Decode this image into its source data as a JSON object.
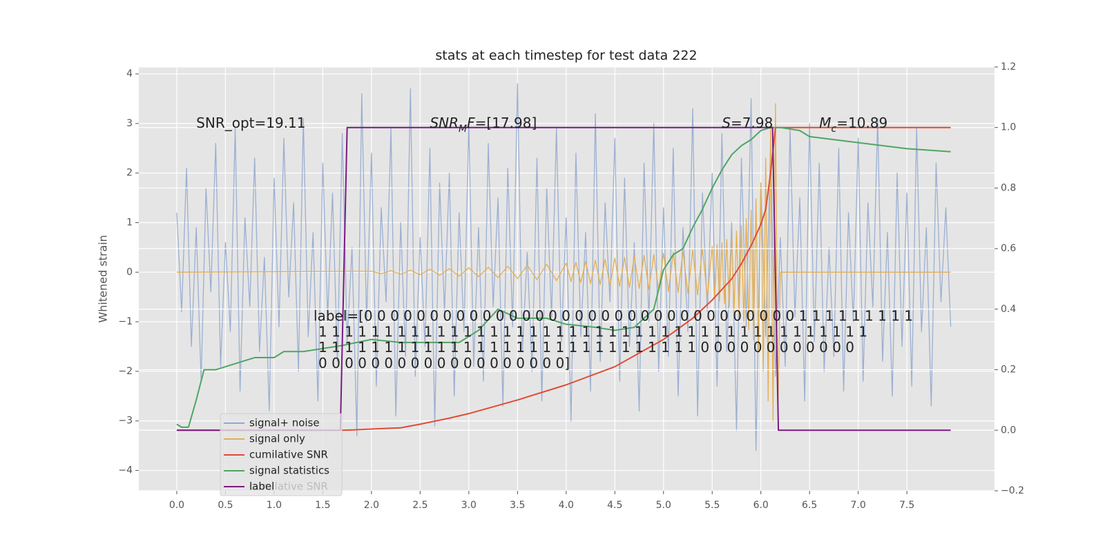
{
  "chart_data": {
    "type": "line",
    "title": "stats at each timestep for test data 222",
    "y_label": "Whitened strain",
    "xlim": [
      -0.39,
      8.4
    ],
    "ylim": [
      -4.41,
      4.14
    ],
    "y2lim": [
      -0.2,
      1.2
    ],
    "xticks": [
      {
        "value": 0,
        "label": "0.0"
      },
      {
        "value": 0.5,
        "label": "0.5"
      },
      {
        "value": 1,
        "label": "1.0"
      },
      {
        "value": 1.5,
        "label": "1.5"
      },
      {
        "value": 2,
        "label": "2.0"
      },
      {
        "value": 2.5,
        "label": "2.5"
      },
      {
        "value": 3,
        "label": "3.0"
      },
      {
        "value": 3.5,
        "label": "3.5"
      },
      {
        "value": 4,
        "label": "4.0"
      },
      {
        "value": 4.5,
        "label": "4.5"
      },
      {
        "value": 5,
        "label": "5.0"
      },
      {
        "value": 5.5,
        "label": "5.5"
      },
      {
        "value": 6,
        "label": "6.0"
      },
      {
        "value": 6.5,
        "label": "6.5"
      },
      {
        "value": 7,
        "label": "7.0"
      },
      {
        "value": 7.5,
        "label": "7.5"
      }
    ],
    "yticks": [
      {
        "value": -4,
        "label": "−4"
      },
      {
        "value": -3,
        "label": "−3"
      },
      {
        "value": -2,
        "label": "−2"
      },
      {
        "value": -1,
        "label": "−1"
      },
      0,
      1,
      2,
      3,
      4
    ],
    "y2ticks": [
      {
        "value": -0.2,
        "label": "−0.2"
      },
      {
        "value": 0,
        "label": "0.0"
      },
      {
        "value": 0.2,
        "label": "0.2"
      },
      {
        "value": 0.4,
        "label": "0.4"
      },
      {
        "value": 0.6,
        "label": "0.6"
      },
      {
        "value": 0.8,
        "label": "0.8"
      },
      {
        "value": 1,
        "label": "1.0"
      },
      {
        "value": 1.2,
        "label": "1.2"
      }
    ],
    "grid": true,
    "series": [
      {
        "name": "signal+ noise",
        "color": "#92a8cf",
        "axis": "y",
        "x": [
          0,
          0.05,
          0.1,
          0.15,
          0.2,
          0.25,
          0.3,
          0.35,
          0.4,
          0.45,
          0.5,
          0.55,
          0.6,
          0.65,
          0.7,
          0.75,
          0.8,
          0.85,
          0.9,
          0.95,
          1,
          1.05,
          1.1,
          1.15,
          1.2,
          1.25,
          1.3,
          1.35,
          1.4,
          1.45,
          1.5,
          1.55,
          1.6,
          1.65,
          1.7,
          1.75,
          1.8,
          1.85,
          1.9,
          1.95,
          2,
          2.05,
          2.1,
          2.15,
          2.2,
          2.25,
          2.3,
          2.35,
          2.4,
          2.45,
          2.5,
          2.55,
          2.6,
          2.65,
          2.7,
          2.75,
          2.8,
          2.85,
          2.9,
          2.95,
          3,
          3.05,
          3.1,
          3.15,
          3.2,
          3.25,
          3.3,
          3.35,
          3.4,
          3.45,
          3.5,
          3.55,
          3.6,
          3.65,
          3.7,
          3.75,
          3.8,
          3.85,
          3.9,
          3.95,
          4,
          4.05,
          4.1,
          4.15,
          4.2,
          4.25,
          4.3,
          4.35,
          4.4,
          4.45,
          4.5,
          4.55,
          4.6,
          4.65,
          4.7,
          4.75,
          4.8,
          4.85,
          4.9,
          4.95,
          5,
          5.05,
          5.1,
          5.15,
          5.2,
          5.25,
          5.3,
          5.35,
          5.4,
          5.45,
          5.5,
          5.55,
          5.6,
          5.65,
          5.7,
          5.75,
          5.8,
          5.85,
          5.9,
          5.95,
          6,
          6.05,
          6.1,
          6.15,
          6.2,
          6.25,
          6.3,
          6.35,
          6.4,
          6.45,
          6.5,
          6.55,
          6.6,
          6.65,
          6.7,
          6.75,
          6.8,
          6.85,
          6.9,
          6.95,
          7,
          7.05,
          7.1,
          7.15,
          7.2,
          7.25,
          7.3,
          7.35,
          7.4,
          7.45,
          7.5,
          7.55,
          7.6,
          7.65,
          7.7,
          7.75,
          7.8,
          7.85,
          7.9,
          7.95
        ],
        "values": [
          1.2,
          -0.8,
          2.1,
          -1.5,
          0.9,
          -2.2,
          1.7,
          -0.4,
          2.6,
          -1.9,
          0.6,
          -1.2,
          2.9,
          -2.4,
          1.1,
          -0.7,
          2.3,
          -1.6,
          0.3,
          -2.8,
          1.9,
          -1.1,
          2.7,
          -0.5,
          1.4,
          -2.0,
          3.1,
          -1.3,
          0.8,
          -2.6,
          2.2,
          -0.9,
          1.6,
          -1.8,
          2.8,
          -1.4,
          0.5,
          -3.3,
          3.6,
          -1.0,
          2.4,
          -2.3,
          1.3,
          -0.6,
          2.9,
          -2.9,
          1.0,
          -1.7,
          3.7,
          -2.1,
          0.7,
          -1.5,
          2.5,
          -3.1,
          1.8,
          -0.8,
          2.0,
          -2.5,
          1.2,
          -1.2,
          3.0,
          -1.9,
          0.9,
          -2.2,
          2.6,
          -0.7,
          1.5,
          -2.7,
          2.1,
          -1.1,
          3.8,
          -1.6,
          0.4,
          -2.0,
          2.3,
          -2.6,
          1.7,
          -0.9,
          2.9,
          -1.4,
          1.1,
          -3.0,
          2.4,
          -1.3,
          0.8,
          -2.4,
          3.2,
          -1.8,
          1.4,
          -0.6,
          2.7,
          -2.2,
          1.9,
          -1.5,
          0.6,
          -2.8,
          2.2,
          -1.0,
          3.0,
          -2.0,
          1.3,
          -1.7,
          2.5,
          -2.5,
          0.9,
          -1.2,
          3.3,
          -2.9,
          1.6,
          -0.8,
          2.0,
          -2.3,
          2.8,
          -1.6,
          1.0,
          -3.2,
          2.3,
          -1.1,
          3.5,
          -3.6,
          1.8,
          -1.3,
          2.6,
          -2.1,
          0.7,
          -1.9,
          2.9,
          -0.9,
          1.5,
          -2.6,
          3.0,
          -1.4,
          2.2,
          -2.0,
          0.5,
          -1.7,
          2.5,
          -2.4,
          1.2,
          -1.0,
          2.7,
          -2.2,
          1.4,
          -0.7,
          3.1,
          -1.8,
          0.8,
          -2.5,
          2.0,
          -1.5,
          1.6,
          -2.3,
          2.9,
          -1.2,
          0.9,
          -2.7,
          2.2,
          -0.6,
          1.3,
          -1.1
        ]
      },
      {
        "name": "signal only",
        "color": "#e5ae4f",
        "axis": "y",
        "x": [
          0,
          2,
          2.1,
          2.2,
          2.3,
          2.4,
          2.5,
          2.6,
          2.7,
          2.8,
          2.9,
          3,
          3.1,
          3.2,
          3.3,
          3.4,
          3.5,
          3.6,
          3.7,
          3.8,
          3.9,
          4,
          4.05,
          4.1,
          4.15,
          4.2,
          4.25,
          4.3,
          4.35,
          4.4,
          4.45,
          4.5,
          4.55,
          4.6,
          4.65,
          4.7,
          4.75,
          4.8,
          4.85,
          4.9,
          4.95,
          5,
          5.05,
          5.1,
          5.15,
          5.2,
          5.25,
          5.3,
          5.35,
          5.4,
          5.45,
          5.5,
          5.525,
          5.55,
          5.575,
          5.6,
          5.625,
          5.65,
          5.675,
          5.7,
          5.725,
          5.75,
          5.775,
          5.8,
          5.825,
          5.85,
          5.875,
          5.9,
          5.925,
          5.95,
          5.975,
          6,
          6.025,
          6.05,
          6.075,
          6.1,
          6.125,
          6.15,
          6.175,
          6.2,
          7.95
        ],
        "values": [
          0,
          0.02,
          -0.03,
          0.03,
          -0.04,
          0.04,
          -0.05,
          0.06,
          -0.06,
          0.07,
          -0.08,
          0.09,
          -0.09,
          0.1,
          -0.11,
          0.12,
          -0.13,
          0.14,
          -0.15,
          0.16,
          -0.17,
          0.18,
          -0.19,
          0.2,
          -0.21,
          0.22,
          -0.23,
          0.24,
          -0.25,
          0.26,
          -0.27,
          0.28,
          -0.29,
          0.3,
          -0.31,
          0.32,
          -0.33,
          0.34,
          -0.35,
          0.36,
          -0.37,
          0.38,
          -0.39,
          0.4,
          -0.41,
          0.42,
          -0.43,
          0.45,
          -0.46,
          0.48,
          -0.5,
          0.52,
          -0.54,
          0.56,
          -0.58,
          0.6,
          -0.63,
          0.66,
          -0.7,
          0.74,
          -0.78,
          0.83,
          -0.88,
          0.94,
          -1.0,
          1.08,
          -1.16,
          1.25,
          -1.36,
          1.48,
          -1.62,
          1.8,
          -2.0,
          2.3,
          -2.6,
          2.9,
          -3.0,
          3.4,
          -2.9,
          0.0,
          0
        ]
      },
      {
        "name": "cumilative SNR",
        "color": "#e24a33",
        "axis": "y2",
        "x": [
          0,
          1.7,
          1.8,
          2,
          2.3,
          2.5,
          2.8,
          3,
          3.5,
          4,
          4.5,
          5,
          5.3,
          5.5,
          5.7,
          5.8,
          5.9,
          6,
          6.05,
          6.1,
          6.15,
          7.95
        ],
        "values": [
          0,
          0,
          0.001,
          0.004,
          0.008,
          0.02,
          0.04,
          0.055,
          0.1,
          0.15,
          0.21,
          0.3,
          0.37,
          0.43,
          0.5,
          0.55,
          0.61,
          0.68,
          0.73,
          0.85,
          1.0,
          1.0
        ]
      },
      {
        "name": "signal statistics",
        "color": "#4ea562",
        "axis": "y2",
        "x": [
          0,
          0.05,
          0.12,
          0.2,
          0.28,
          0.4,
          0.6,
          0.8,
          1,
          1.1,
          1.3,
          1.5,
          1.7,
          2,
          2.3,
          2.6,
          2.9,
          3.1,
          3.3,
          3.5,
          3.8,
          4,
          4.3,
          4.5,
          4.7,
          4.9,
          5,
          5.1,
          5.2,
          5.3,
          5.4,
          5.5,
          5.6,
          5.7,
          5.8,
          5.9,
          6,
          6.1,
          6.2,
          6.4,
          6.5,
          7,
          7.5,
          7.95
        ],
        "values": [
          0.02,
          0.01,
          0.01,
          0.1,
          0.2,
          0.2,
          0.22,
          0.24,
          0.24,
          0.26,
          0.26,
          0.27,
          0.28,
          0.3,
          0.29,
          0.29,
          0.29,
          0.33,
          0.4,
          0.37,
          0.37,
          0.35,
          0.34,
          0.33,
          0.34,
          0.4,
          0.53,
          0.58,
          0.6,
          0.67,
          0.73,
          0.8,
          0.86,
          0.91,
          0.94,
          0.96,
          0.99,
          1.0,
          1.0,
          0.99,
          0.97,
          0.95,
          0.93,
          0.92
        ]
      },
      {
        "name": "label",
        "color": "#7a1a80",
        "axis": "y2",
        "x": [
          0,
          1.68,
          1.75,
          6.12,
          6.18,
          7.95
        ],
        "values": [
          0,
          0,
          1.0,
          1.0,
          0,
          0
        ]
      }
    ],
    "background_legend": [
      "cumilative SNR"
    ],
    "annotations": [
      {
        "x": 0.2,
        "y": 3.0,
        "parts": [
          {
            "text": "SNR_opt=19.11"
          }
        ]
      },
      {
        "x": 2.6,
        "y": 3.0,
        "parts": [
          {
            "text": "SNR",
            "italic": true
          },
          {
            "text": "M",
            "italic": true,
            "sub": true
          },
          {
            "text": "F",
            "italic": true
          },
          {
            "text": "=[17.98]"
          }
        ]
      },
      {
        "x": 5.6,
        "y": 3.0,
        "parts": [
          {
            "text": "S",
            "italic": true
          },
          {
            "text": "=7.98"
          }
        ]
      },
      {
        "x": 6.6,
        "y": 3.0,
        "parts": [
          {
            "text": "M",
            "italic": true
          },
          {
            "text": "c",
            "italic": true,
            "sub": true
          },
          {
            "text": "=10.89"
          }
        ]
      }
    ],
    "label_text": [
      "label=[0 0 0 0 0 0 0 0 0 0 0 0 0 0 0 0 0 0 0 0 0 0 0 0 0 0 0 0 0 0 0 0 0 1 1 1 1 1 1 1 1 1",
      "1 1 1 1 1 1 1 1 1 1 1 1 1 1 1 1 1 1 1 1 1 1 1 1 1 1 1 1 1 1 1 1 1 1 1 1 1 1 1 1 1 1",
      "1 1 1 1 1 1 1 1 1 1 1 1 1 1 1 1 1 1 1 1 1 1 1 1 1 1 1 1 1 0 0 0 0 0 0 0 0 0 0 0 0",
      "0 0 0 0 0 0 0 0 0 0 0 0 0 0 0 0 0 0 0]"
    ]
  }
}
